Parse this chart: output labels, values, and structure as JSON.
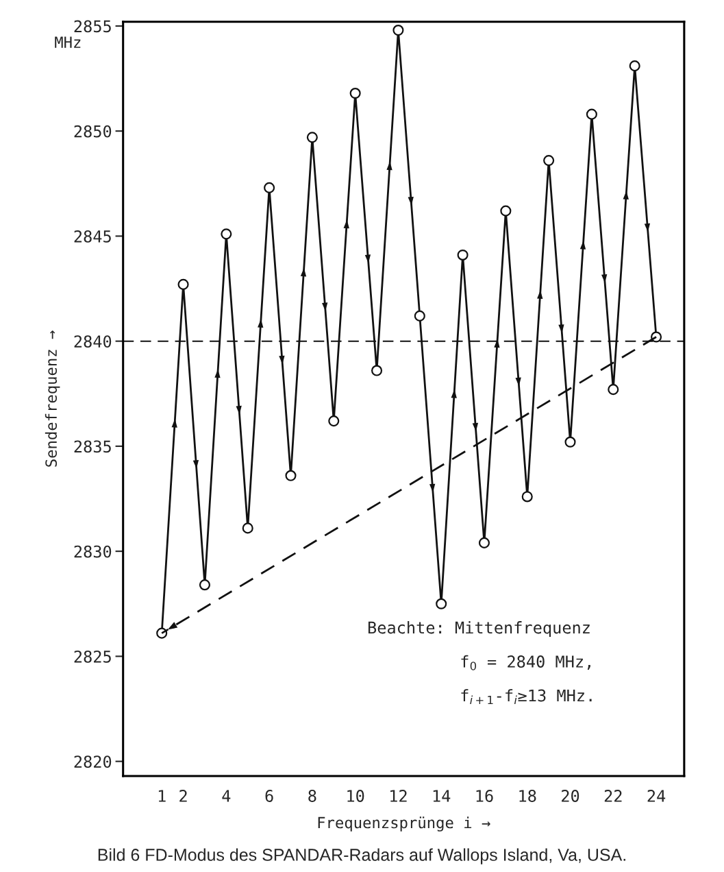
{
  "chart_data": {
    "type": "line",
    "title": "Bild 6 FD-Modus des SPANDAR-Radars auf Wallops Island, Va, USA.",
    "xlabel": "Frequenzsprünge i →",
    "ylabel": "Sendefrequenz →",
    "x": [
      1,
      2,
      3,
      4,
      5,
      6,
      7,
      8,
      9,
      10,
      11,
      12,
      13,
      14,
      15,
      16,
      17,
      18,
      19,
      20,
      21,
      22,
      23,
      24
    ],
    "series": [
      {
        "color": "#111111",
        "marker": "circle",
        "line_style": "solid",
        "values": [
          2826.1,
          2842.7,
          2828.4,
          2845.1,
          2831.1,
          2847.3,
          2833.6,
          2849.7,
          2836.2,
          2851.8,
          2838.6,
          2854.8,
          2841.2,
          2827.5,
          2844.1,
          2830.4,
          2846.2,
          2832.6,
          2848.6,
          2835.2,
          2850.8,
          2837.7,
          2853.1,
          2840.2
        ]
      },
      {
        "type": "line",
        "color": "#111111",
        "marker": "none",
        "line_style": "dashed",
        "x": [
          24,
          1
        ],
        "values": [
          2840.2,
          2826.1
        ]
      }
    ],
    "xlim": [
      -0.8,
      25.3
    ],
    "ylim": [
      2819.3,
      2855.2
    ],
    "xticks": [
      1,
      2,
      4,
      6,
      8,
      10,
      12,
      14,
      16,
      18,
      20,
      22,
      24
    ],
    "yticks": [
      2820,
      2825,
      2830,
      2835,
      2840,
      2845,
      2850,
      2855
    ],
    "ref_lines": [
      {
        "axis": "y",
        "value": 2840,
        "color": "#111111",
        "line_style": "dashed"
      }
    ],
    "annotations": [
      "MHz",
      "Beachte: Mittenfrequenz",
      "f$_{0}$ = 2840 MHz,",
      "f$_{i+1}$-f$_{i}$≥13 MHz."
    ],
    "grid": false,
    "legend": false
  }
}
